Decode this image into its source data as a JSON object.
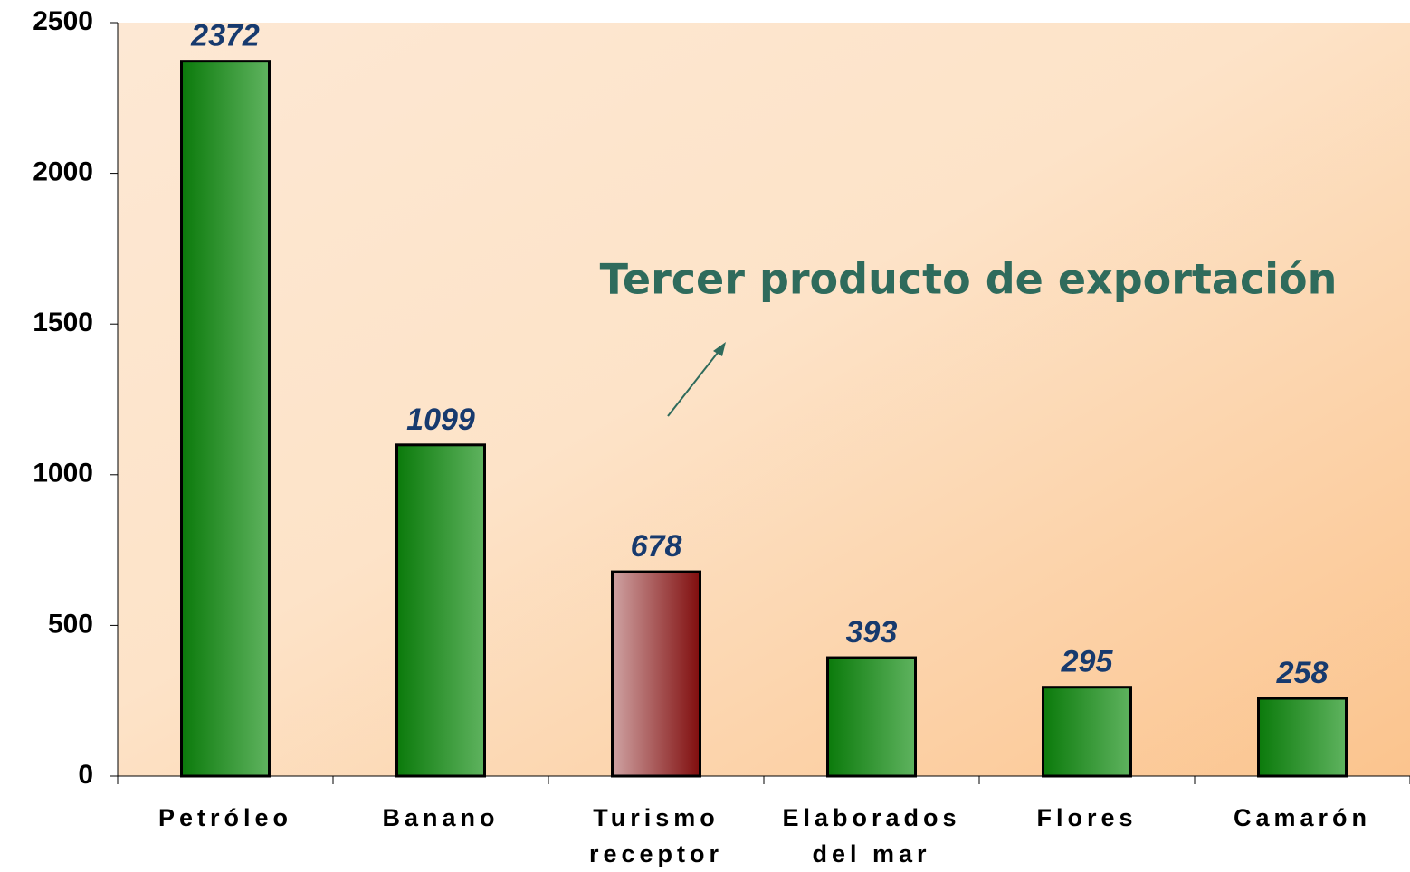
{
  "chart_data": {
    "type": "bar",
    "categories": [
      "Petróleo",
      "Banano",
      "Turismo receptor",
      "Elaborados del mar",
      "Flores",
      "Camarón"
    ],
    "values": [
      2372,
      1099,
      678,
      393,
      295,
      258
    ],
    "colors": [
      [
        "#0b7a0b",
        "#5fb35f"
      ],
      [
        "#0b7a0b",
        "#5fb35f"
      ],
      [
        "#cfa3a3",
        "#800d0d"
      ],
      [
        "#0b7a0b",
        "#5fb35f"
      ],
      [
        "#0b7a0b",
        "#5fb35f"
      ],
      [
        "#0b7a0b",
        "#5fb35f"
      ]
    ],
    "ylim": [
      0,
      2500
    ],
    "yticks": [
      0,
      500,
      1000,
      1500,
      2000,
      2500
    ],
    "annotation": "Tercer producto de exportación"
  }
}
